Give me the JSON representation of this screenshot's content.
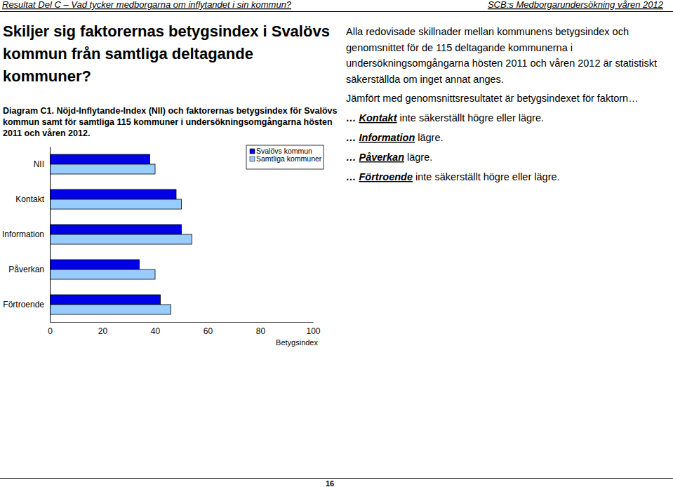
{
  "page": {
    "header_left": "Resultat Del C – Vad tycker medborgarna om inflytandet i sin kommun?",
    "header_right": "SCB:s Medborgarundersökning våren 2012",
    "title": [
      "Skiljer sig faktorernas betygsindex i Svalövs",
      "kommun från samtliga deltagande",
      "kommuner?"
    ],
    "caption": [
      "Diagram C1. Nöjd-Inflytande-Index (NII) och faktorernas betygsindex för Svalövs",
      "kommun samt för samtliga 115 kommuner i undersökningsomgångarna hösten",
      "2011 och våren 2012."
    ],
    "notes": [
      "Alla redovisade skillnader mellan kommunens betygsindex och",
      "genomsnittet för de 115 deltagande kommunerna i",
      "undersökningsomgångarna hösten 2011 och våren 2012 är statistiskt",
      "säkerställda om inget annat anges."
    ],
    "intro": "Jämfört med genomsnittsresultatet är betygsindexet för faktorn…",
    "items": [
      {
        "lead": "…",
        "factor": "Kontakt",
        "text": "inte säkerställt högre eller lägre."
      },
      {
        "lead": "…",
        "factor": "Information",
        "text": "lägre."
      },
      {
        "lead": "…",
        "factor": "Påverkan",
        "text": "lägre."
      },
      {
        "lead": "…",
        "factor": "Förtroende",
        "text": "inte säkerställt högre eller lägre."
      }
    ],
    "page_number": "16"
  },
  "chart_data": {
    "type": "bar",
    "orientation": "horizontal",
    "categories": [
      "NII",
      "Kontakt",
      "Information",
      "Påverkan",
      "Förtroende"
    ],
    "series": [
      {
        "name": "Svalövs kommun",
        "color": "#0000e6",
        "values": [
          38,
          48,
          50,
          34,
          42
        ]
      },
      {
        "name": "Samtliga kommuner",
        "color": "#99ccff",
        "values": [
          40,
          50,
          54,
          40,
          46
        ]
      }
    ],
    "x_label": "Betygsindex",
    "xlim": [
      0,
      100
    ],
    "xticks": [
      0,
      20,
      40,
      60,
      80,
      100
    ],
    "legend": "upper right",
    "grid": false
  }
}
